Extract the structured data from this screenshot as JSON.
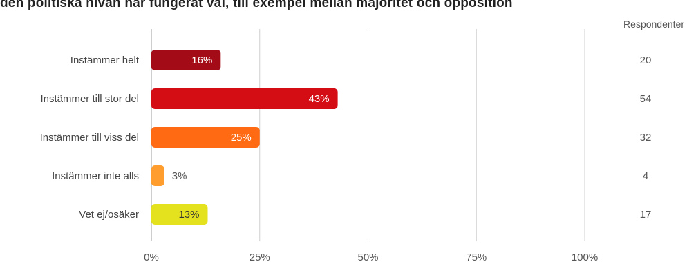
{
  "title": "den politiska nivån har fungerat väl, till exempel mellan majoritet och opposition",
  "respondents_header": "Respondenter",
  "chart_data": {
    "type": "bar",
    "orientation": "horizontal",
    "title": "den politiska nivån har fungerat väl, till exempel mellan majoritet och opposition",
    "categories": [
      "Instämmer helt",
      "Instämmer till stor del",
      "Instämmer till viss del",
      "Instämmer inte alls",
      "Vet ej/osäker"
    ],
    "values": [
      16,
      43,
      25,
      3,
      13
    ],
    "value_labels": [
      "16%",
      "43%",
      "25%",
      "3%",
      "13%"
    ],
    "colors": [
      "#a30c16",
      "#d40d14",
      "#ff6a13",
      "#ff9d2e",
      "#e4e11f"
    ],
    "label_colors": [
      "#ffffff",
      "#ffffff",
      "#ffffff",
      "#555555",
      "#333333"
    ],
    "label_inside": [
      true,
      true,
      true,
      false,
      true
    ],
    "respondents": [
      "20",
      "54",
      "32",
      "4",
      "17"
    ],
    "xlim": [
      0,
      100
    ],
    "x_ticks": [
      "0%",
      "25%",
      "50%",
      "75%",
      "100%"
    ],
    "grid": true
  }
}
